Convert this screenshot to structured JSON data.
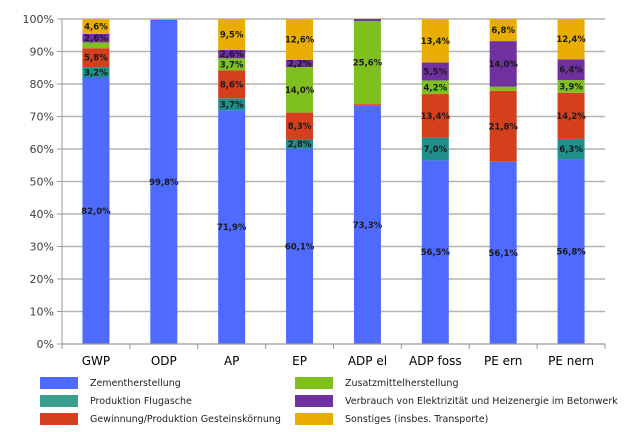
{
  "chart_data": {
    "type": "bar",
    "stacked": true,
    "percent": true,
    "title": "",
    "xlabel": "",
    "ylabel": "",
    "ylim": [
      0,
      100
    ],
    "yticks": [
      "0%",
      "10%",
      "20%",
      "30%",
      "40%",
      "50%",
      "60%",
      "70%",
      "80%",
      "90%",
      "100%"
    ],
    "grid": true,
    "legend_position": "bottom",
    "categories": [
      "GWP",
      "ODP",
      "AP",
      "EP",
      "ADP el",
      "ADP foss",
      "PE ern",
      "PE nern"
    ],
    "series": [
      {
        "name": "Zementherstellung",
        "color": "#4f6bff",
        "values": [
          82.0,
          99.8,
          71.9,
          60.1,
          73.3,
          56.5,
          56.1,
          56.8
        ],
        "labels": [
          "82,0%",
          "99,8%",
          "71,9%",
          "60,1%",
          "73,3%",
          "56,5%",
          "56,1%",
          "56,8%"
        ]
      },
      {
        "name": "Produktion Flugasche",
        "color": "#1e8f8a",
        "values": [
          3.2,
          0,
          3.7,
          2.8,
          0,
          7.0,
          0,
          6.3
        ],
        "labels": [
          "3,2%",
          "",
          "3,7%",
          "2,8%",
          "",
          "7,0%",
          "",
          "6,3%"
        ]
      },
      {
        "name": "Gewinnung/Produktion Gesteinskörnung",
        "color": "#d43f1e",
        "values": [
          5.8,
          0,
          8.6,
          8.3,
          0.5,
          13.4,
          21.8,
          14.2
        ],
        "labels": [
          "5,8%",
          "",
          "8,6%",
          "8,3%",
          "",
          "13,4%",
          "21,8%",
          "14,2%"
        ]
      },
      {
        "name": "Zusatzmittelherstellung",
        "color": "#7fbf1e",
        "values": [
          1.8,
          0,
          3.7,
          14.0,
          25.6,
          4.2,
          1.3,
          3.9
        ],
        "labels": [
          "",
          "",
          "3,7%",
          "14,0%",
          "25,6%",
          "4,2%",
          "",
          "3,9%"
        ]
      },
      {
        "name": "Verbrauch von Elektrizität und Heizenergie im Betonwerk",
        "color": "#7030a0",
        "values": [
          2.6,
          0,
          2.6,
          2.2,
          0.6,
          5.5,
          14.0,
          6.4
        ],
        "labels": [
          "2,6%",
          "",
          "2,6%",
          "2,2%",
          "",
          "5,5%",
          "14,0%",
          "6,4%"
        ]
      },
      {
        "name": "Sonstiges (insbes. Transporte)",
        "color": "#e8ad00",
        "values": [
          4.6,
          0.2,
          9.5,
          12.6,
          0,
          13.4,
          6.8,
          12.4
        ],
        "labels": [
          "4,6%",
          "",
          "9,5%",
          "12,6%",
          "",
          "13,4%",
          "6,8%",
          "12,4%"
        ]
      }
    ]
  },
  "legend": {
    "items": [
      {
        "label": "Zementherstellung",
        "color": "#4f6bff"
      },
      {
        "label": "Produktion Flugasche",
        "color": "#3a9e8f"
      },
      {
        "label": "Gewinnung/Produktion Gesteinskörnung",
        "color": "#d43f1e"
      },
      {
        "label": "Zusatzmittelherstellung",
        "color": "#7fbf1e"
      },
      {
        "label": "Verbrauch von Elektrizität und Heizenergie im Betonwerk",
        "color": "#7030a0"
      },
      {
        "label": "Sonstiges (insbes. Transporte)",
        "color": "#e8ad00"
      }
    ]
  }
}
